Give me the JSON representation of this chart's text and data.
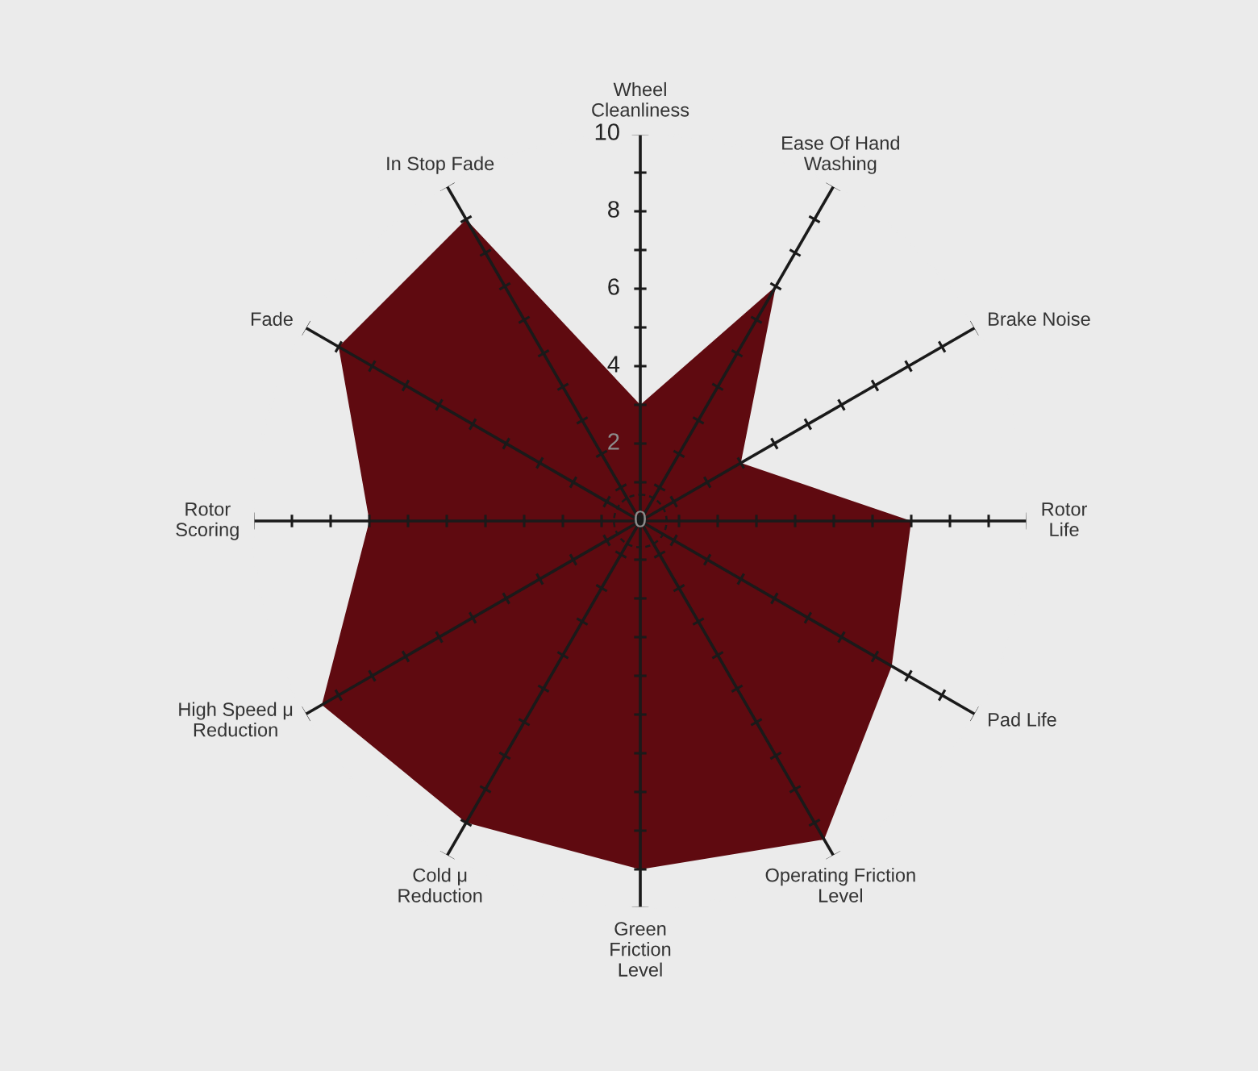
{
  "chart_data": {
    "type": "radar",
    "categories": [
      "Wheel\nCleanliness",
      "Ease Of Hand\nWashing",
      "Brake Noise",
      "Rotor\nLife",
      "Pad Life",
      "Operating Friction\nLevel",
      "Green\nFriction\nLevel",
      "Cold μ\nReduction",
      "High Speed μ\nReduction",
      "Rotor\nScoring",
      "Fade",
      "In Stop Fade"
    ],
    "series": [
      {
        "color": "#5f0a10",
        "values": [
          3,
          7,
          3,
          7,
          7.5,
          9.5,
          9,
          9,
          9.5,
          7,
          9,
          9
        ]
      }
    ],
    "ylim": [
      0,
      10
    ],
    "yticks": [
      0,
      2,
      4,
      6,
      8,
      10
    ]
  }
}
